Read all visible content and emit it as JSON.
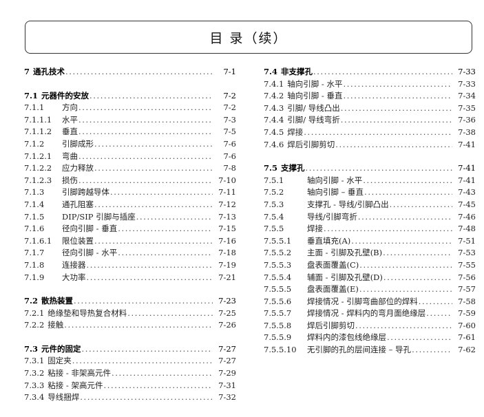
{
  "header": {
    "title": "目 录（续）"
  },
  "left_column": [
    {
      "entries": [
        {
          "num": "7",
          "title": "通孔技术",
          "page": "7-1",
          "head": true
        }
      ]
    },
    {
      "entries": [
        {
          "num": "7.1",
          "title": "元器件的安放",
          "page": "7-2",
          "head": true
        },
        {
          "num": "7.1.1",
          "title": "方向",
          "page": "7-2"
        },
        {
          "num": "7.1.1.1",
          "title": "水平",
          "page": "7-3"
        },
        {
          "num": "7.1.1.2",
          "title": "垂直",
          "page": "7-5"
        },
        {
          "num": "7.1.2",
          "title": "引脚成形",
          "page": "7-6"
        },
        {
          "num": "7.1.2.1",
          "title": "弯曲",
          "page": "7-6"
        },
        {
          "num": "7.1.2.2",
          "title": "应力释放",
          "page": "7-8"
        },
        {
          "num": "7.1.2.3",
          "title": "损伤",
          "page": "7-10"
        },
        {
          "num": "7.1.3",
          "title": "引脚跨越导体",
          "page": "7-11"
        },
        {
          "num": "7.1.4",
          "title": "通孔阻塞",
          "page": "7-12"
        },
        {
          "num": "7.1.5",
          "title": "DIP/SIP 引脚与插座",
          "page": "7-13"
        },
        {
          "num": "7.1.6",
          "title": "径向引脚 - 垂直",
          "page": "7-15"
        },
        {
          "num": "7.1.6.1",
          "title": "限位装置",
          "page": "7-16"
        },
        {
          "num": "7.1.7",
          "title": "径向引脚 - 水平",
          "page": "7-18"
        },
        {
          "num": "7.1.8",
          "title": "连接器",
          "page": "7-19"
        },
        {
          "num": "7.1.9",
          "title": "大功率",
          "page": "7-21"
        }
      ]
    },
    {
      "entries": [
        {
          "num": "7.2",
          "title": "散热装置",
          "page": "7-23",
          "head": true
        },
        {
          "num": "7.2.1",
          "title": "绝缘垫和导热复合材料",
          "page": "7-25"
        },
        {
          "num": "7.2.2",
          "title": "接触",
          "page": "7-26"
        }
      ]
    },
    {
      "entries": [
        {
          "num": "7.3",
          "title": "元件的固定",
          "page": "7-27",
          "head": true
        },
        {
          "num": "7.3.1",
          "title": "固定夹",
          "page": "7-27"
        },
        {
          "num": "7.3.2",
          "title": "粘接 - 非架高元件",
          "page": "7-29"
        },
        {
          "num": "7.3.3",
          "title": "粘接 - 架高元件",
          "page": "7-31"
        },
        {
          "num": "7.3.4",
          "title": "导线捆焊",
          "page": "7-32"
        }
      ]
    }
  ],
  "right_column": [
    {
      "entries": [
        {
          "num": "7.4",
          "title": "非支撑孔",
          "page": "7-33",
          "head": true
        },
        {
          "num": "7.4.1",
          "title": "轴向引脚 - 水平",
          "page": "7-33"
        },
        {
          "num": "7.4.2",
          "title": "轴向引脚 - 垂直",
          "page": "7-34"
        },
        {
          "num": "7.4.3",
          "title": "引脚/ 导线凸出",
          "page": "7-35"
        },
        {
          "num": "7.4.4",
          "title": "引脚/ 导线弯折",
          "page": "7-36"
        },
        {
          "num": "7.4.5",
          "title": "焊接",
          "page": "7-38"
        },
        {
          "num": "7.4.6",
          "title": "焊后引脚剪切",
          "page": "7-41"
        }
      ]
    },
    {
      "entries": [
        {
          "num": "7.5",
          "title": "支撑孔",
          "page": "7-41",
          "head": true
        },
        {
          "num": "7.5.1",
          "title": "轴向引脚 - 水平",
          "page": "7-41"
        },
        {
          "num": "7.5.2",
          "title": "轴向引脚 – 垂直",
          "page": "7-43"
        },
        {
          "num": "7.5.3",
          "title": "支撑孔 - 导线/引脚凸出",
          "page": "7-45"
        },
        {
          "num": "7.5.4",
          "title": "导线/引脚弯折",
          "page": "7-46"
        },
        {
          "num": "7.5.5",
          "title": "焊接",
          "page": "7-48"
        },
        {
          "num": "7.5.5.1",
          "title": "垂直填充(A)",
          "page": "7-51"
        },
        {
          "num": "7.5.5.2",
          "title": "主面 - 引脚及孔壁(B)",
          "page": "7-53"
        },
        {
          "num": "7.5.5.3",
          "title": "盘表面覆盖(C)",
          "page": "7-55"
        },
        {
          "num": "7.5.5.4",
          "title": "辅面 - 引脚及孔壁(D)",
          "page": "7-56"
        },
        {
          "num": "7.5.5.5",
          "title": "盘表面覆盖(E)",
          "page": "7-57"
        },
        {
          "num": "7.5.5.6",
          "title": "焊接情况 - 引脚弯曲部位的焊料",
          "page": "7-58"
        },
        {
          "num": "7.5.5.7",
          "title": "焊接情况 - 焊料内的弯月面绝缘层",
          "page": "7-59"
        },
        {
          "num": "7.5.5.8",
          "title": "焊后引脚剪切",
          "page": "7-60"
        },
        {
          "num": "7.5.5.9",
          "title": "焊料内的漆包线绝缘层",
          "page": "7-61"
        },
        {
          "num": "7.5.5.10",
          "title": "无引脚的孔的层间连接 – 导孔",
          "page": "7-62"
        }
      ]
    }
  ]
}
